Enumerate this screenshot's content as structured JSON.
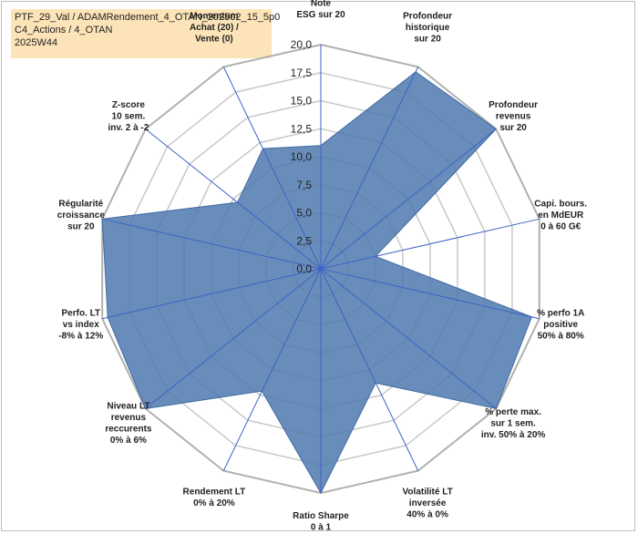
{
  "chart_data": {
    "type": "radar",
    "title_lines": [
      "PTF_29_Val / ADAMRendement_4_OTAN_202502_15_5p0",
      "C4_Actions / 4_OTAN",
      "2025W44"
    ],
    "rmax": 20,
    "ticks": [
      "0,0",
      "2,5",
      "5,0",
      "7,5",
      "10,0",
      "12,5",
      "15,0",
      "17,5",
      "20,0"
    ],
    "series_color": "#4f79ae",
    "axes": [
      {
        "label": [
          "Note",
          "ESG sur 20"
        ],
        "value": 11
      },
      {
        "label": [
          "Profondeur",
          "historique",
          "sur 20"
        ],
        "value": 19.5
      },
      {
        "label": [
          "Profondeur",
          "revenus",
          "sur 20"
        ],
        "value": 20
      },
      {
        "label": [
          "Capi. bours.",
          "en MdEUR",
          "0 à 60 G€"
        ],
        "value": 5
      },
      {
        "label": [
          "% perfo 1A",
          "positive",
          "50% à 80%"
        ],
        "value": 19.3
      },
      {
        "label": [
          "% perte max.",
          "sur 1 sem.",
          "inv. 50% à 20%"
        ],
        "value": 20
      },
      {
        "label": [
          "Volatilité LT",
          "inversée",
          "40% à 0%"
        ],
        "value": 11.3
      },
      {
        "label": [
          "Ratio Sharpe",
          "0 à 1"
        ],
        "value": 20
      },
      {
        "label": [
          "Rendement LT",
          "0% à 20%"
        ],
        "value": 12.1
      },
      {
        "label": [
          "Niveau LT",
          "revenus",
          "reccurents",
          "0% à 6%"
        ],
        "value": 20
      },
      {
        "label": [
          "Perfo. LT",
          "vs index",
          "-8% à 12%"
        ],
        "value": 19.5
      },
      {
        "label": [
          "Régularité",
          "croissance",
          "sur 20"
        ],
        "value": 20
      },
      {
        "label": [
          "Z-score",
          "10 sem.",
          "inv. 2 à -2"
        ],
        "value": 9.5
      },
      {
        "label": [
          "Momentum",
          "Achat (20) /",
          "Vente (0)"
        ],
        "value": 11.9
      }
    ]
  }
}
